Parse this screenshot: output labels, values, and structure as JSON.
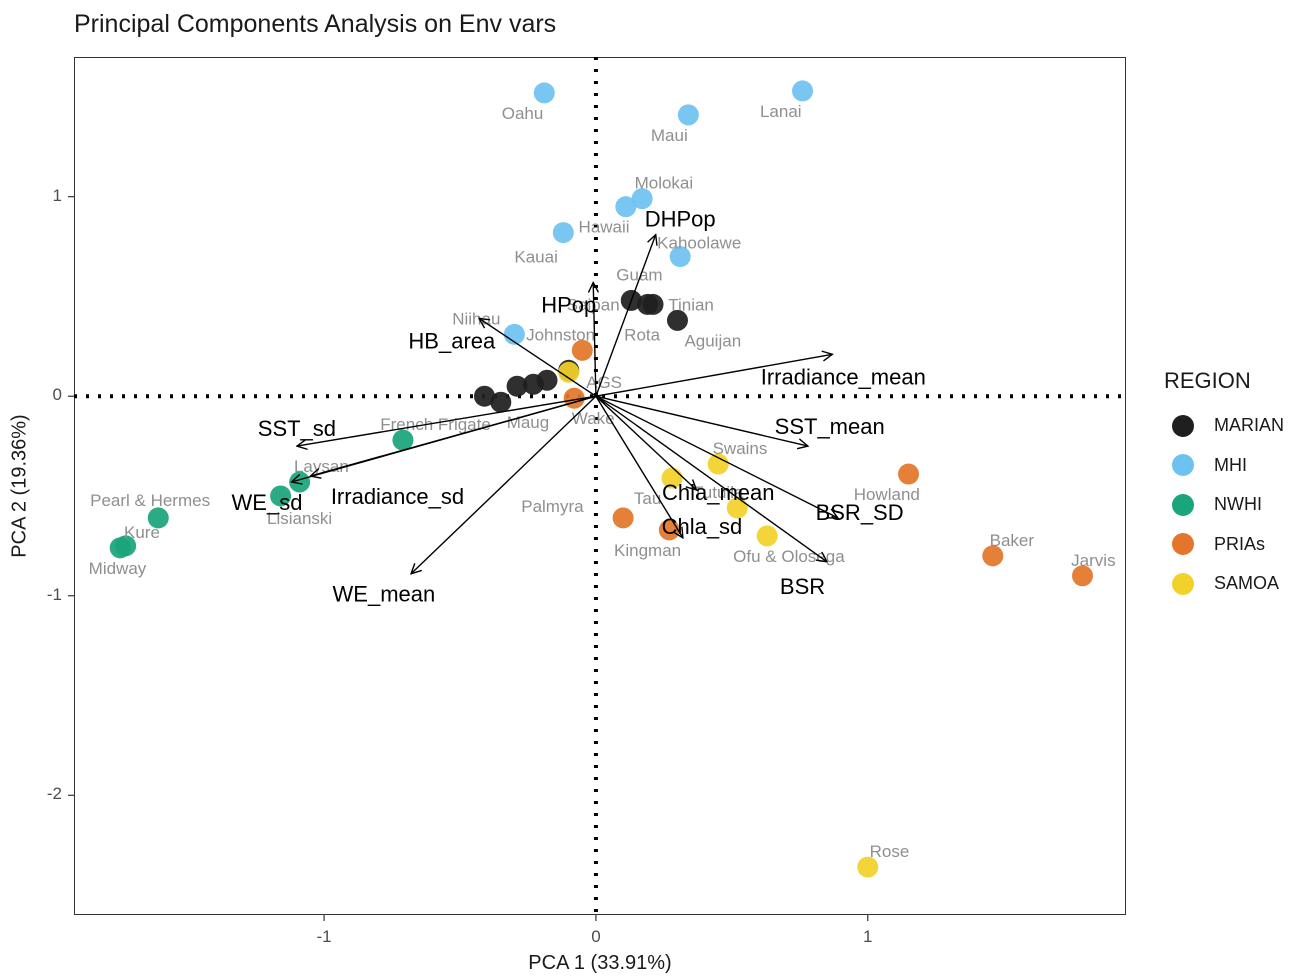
{
  "chart_data": {
    "type": "scatter",
    "title": "Principal Components Analysis on Env vars",
    "xlabel": "PCA 1 (33.91%)",
    "ylabel": "PCA 2 (19.36%)",
    "xlim": [
      -1.92,
      1.95
    ],
    "ylim": [
      -2.6,
      1.7
    ],
    "xticks": [
      -1,
      0,
      1
    ],
    "yticks": [
      -2,
      -1,
      0,
      1
    ],
    "grid": false,
    "reference_lines": {
      "x": 0,
      "y": 0,
      "style": "dotted"
    },
    "legend": {
      "title": "REGION",
      "position": "right",
      "entries": [
        {
          "name": "MARIAN",
          "color": "#1f1f1f"
        },
        {
          "name": "MHI",
          "color": "#6ec2f0"
        },
        {
          "name": "NWHI",
          "color": "#1aa57c"
        },
        {
          "name": "PRIAs",
          "color": "#e3762a"
        },
        {
          "name": "SAMOA",
          "color": "#f2d22a"
        }
      ]
    },
    "points": [
      {
        "region": "MHI",
        "x": -0.19,
        "y": 1.52
      },
      {
        "region": "MHI",
        "x": 0.34,
        "y": 1.41
      },
      {
        "region": "MHI",
        "x": 0.76,
        "y": 1.53
      },
      {
        "region": "MHI",
        "x": 0.17,
        "y": 0.99
      },
      {
        "region": "MHI",
        "x": 0.11,
        "y": 0.95
      },
      {
        "region": "MHI",
        "x": -0.12,
        "y": 0.82
      },
      {
        "region": "MHI",
        "x": 0.31,
        "y": 0.7
      },
      {
        "region": "MHI",
        "x": -0.3,
        "y": 0.31
      },
      {
        "region": "MARIAN",
        "x": 0.13,
        "y": 0.48
      },
      {
        "region": "MARIAN",
        "x": 0.19,
        "y": 0.46
      },
      {
        "region": "MARIAN",
        "x": 0.21,
        "y": 0.46
      },
      {
        "region": "MARIAN",
        "x": 0.3,
        "y": 0.38
      },
      {
        "region": "MARIAN",
        "x": -0.41,
        "y": 0.0
      },
      {
        "region": "MARIAN",
        "x": -0.35,
        "y": -0.03
      },
      {
        "region": "MARIAN",
        "x": -0.29,
        "y": 0.05
      },
      {
        "region": "MARIAN",
        "x": -0.23,
        "y": 0.06
      },
      {
        "region": "MARIAN",
        "x": -0.18,
        "y": 0.08
      },
      {
        "region": "MARIAN",
        "x": -0.1,
        "y": 0.13
      },
      {
        "region": "PRIAs",
        "x": -0.05,
        "y": 0.23
      },
      {
        "region": "PRIAs",
        "x": -0.08,
        "y": -0.01
      },
      {
        "region": "PRIAs",
        "x": 1.15,
        "y": -0.39
      },
      {
        "region": "PRIAs",
        "x": 1.46,
        "y": -0.8
      },
      {
        "region": "PRIAs",
        "x": 1.79,
        "y": -0.9
      },
      {
        "region": "PRIAs",
        "x": 0.1,
        "y": -0.61
      },
      {
        "region": "PRIAs",
        "x": 0.27,
        "y": -0.67
      },
      {
        "region": "SAMOA",
        "x": -0.1,
        "y": 0.12
      },
      {
        "region": "SAMOA",
        "x": 0.45,
        "y": -0.34
      },
      {
        "region": "SAMOA",
        "x": 0.28,
        "y": -0.41
      },
      {
        "region": "SAMOA",
        "x": 0.52,
        "y": -0.56
      },
      {
        "region": "SAMOA",
        "x": 0.63,
        "y": -0.7
      },
      {
        "region": "SAMOA",
        "x": 1.0,
        "y": -2.36
      },
      {
        "region": "NWHI",
        "x": -0.71,
        "y": -0.22
      },
      {
        "region": "NWHI",
        "x": -1.09,
        "y": -0.43
      },
      {
        "region": "NWHI",
        "x": -1.16,
        "y": -0.5
      },
      {
        "region": "NWHI",
        "x": -1.61,
        "y": -0.61
      },
      {
        "region": "NWHI",
        "x": -1.73,
        "y": -0.75
      },
      {
        "region": "NWHI",
        "x": -1.75,
        "y": -0.76
      }
    ],
    "site_labels": [
      {
        "text": "Oahu",
        "x": -0.27,
        "y": 1.42
      },
      {
        "text": "Maui",
        "x": 0.27,
        "y": 1.31
      },
      {
        "text": "Lanai",
        "x": 0.68,
        "y": 1.43
      },
      {
        "text": "Molokai",
        "x": 0.25,
        "y": 1.07
      },
      {
        "text": "Hawaii",
        "x": 0.03,
        "y": 0.85
      },
      {
        "text": "Kahoolawe",
        "x": 0.38,
        "y": 0.77
      },
      {
        "text": "Kauai",
        "x": -0.22,
        "y": 0.7
      },
      {
        "text": "Guam",
        "x": 0.16,
        "y": 0.61
      },
      {
        "text": "Saipan",
        "x": -0.01,
        "y": 0.46
      },
      {
        "text": "Tinian",
        "x": 0.35,
        "y": 0.46
      },
      {
        "text": "Niihau",
        "x": -0.44,
        "y": 0.39
      },
      {
        "text": "Johnston",
        "x": -0.13,
        "y": 0.31
      },
      {
        "text": "Rota",
        "x": 0.17,
        "y": 0.31
      },
      {
        "text": "Aguijan",
        "x": 0.43,
        "y": 0.28
      },
      {
        "text": "AGS",
        "x": 0.03,
        "y": 0.07
      },
      {
        "text": "French Frigate",
        "x": -0.59,
        "y": -0.14
      },
      {
        "text": "Maug",
        "x": -0.25,
        "y": -0.13
      },
      {
        "text": "Wake",
        "x": -0.01,
        "y": -0.11
      },
      {
        "text": "Swains",
        "x": 0.53,
        "y": -0.26
      },
      {
        "text": "Laysan",
        "x": -1.01,
        "y": -0.35
      },
      {
        "text": "Howland",
        "x": 1.07,
        "y": -0.49
      },
      {
        "text": "Pearl & Hermes",
        "x": -1.64,
        "y": -0.52
      },
      {
        "text": "Tau",
        "x": 0.19,
        "y": -0.51
      },
      {
        "text": "Tutuila",
        "x": 0.45,
        "y": -0.48
      },
      {
        "text": "Palmyra",
        "x": -0.16,
        "y": -0.55
      },
      {
        "text": "Lisianski",
        "x": -1.09,
        "y": -0.61
      },
      {
        "text": "Kure",
        "x": -1.67,
        "y": -0.68
      },
      {
        "text": "Baker",
        "x": 1.53,
        "y": -0.72
      },
      {
        "text": "Jarvis",
        "x": 1.83,
        "y": -0.82
      },
      {
        "text": "Kingman",
        "x": 0.19,
        "y": -0.77
      },
      {
        "text": "Ofu & Olosega",
        "x": 0.71,
        "y": -0.8
      },
      {
        "text": "Midway",
        "x": -1.76,
        "y": -0.86
      },
      {
        "text": "Rose",
        "x": 1.08,
        "y": -2.28
      }
    ],
    "loadings": [
      {
        "name": "DHPop",
        "x": 0.22,
        "y": 0.81,
        "label_x": 0.31,
        "label_y": 0.89
      },
      {
        "name": "HPop",
        "x": -0.01,
        "y": 0.57,
        "label_x": -0.1,
        "label_y": 0.46
      },
      {
        "name": "HB_area",
        "x": -0.43,
        "y": 0.39,
        "label_x": -0.53,
        "label_y": 0.28
      },
      {
        "name": "Irradiance_mean",
        "x": 0.87,
        "y": 0.21,
        "label_x": 0.91,
        "label_y": 0.1
      },
      {
        "name": "SST_sd",
        "x": -1.1,
        "y": -0.25,
        "label_x": -1.1,
        "label_y": -0.16
      },
      {
        "name": "SST_mean",
        "x": 0.78,
        "y": -0.25,
        "label_x": 0.86,
        "label_y": -0.15
      },
      {
        "name": "Irradiance_sd",
        "x": -1.05,
        "y": -0.4,
        "label_x": -0.73,
        "label_y": -0.5
      },
      {
        "name": "WE_sd",
        "x": -1.12,
        "y": -0.43,
        "label_x": -1.21,
        "label_y": -0.53
      },
      {
        "name": "Chla_mean",
        "x": 0.37,
        "y": -0.47,
        "label_x": 0.45,
        "label_y": -0.48
      },
      {
        "name": "BSR_SD",
        "x": 0.89,
        "y": -0.61,
        "label_x": 0.97,
        "label_y": -0.58
      },
      {
        "name": "Chla_sd",
        "x": 0.32,
        "y": -0.71,
        "label_x": 0.39,
        "label_y": -0.65
      },
      {
        "name": "BSR",
        "x": 0.85,
        "y": -0.83,
        "label_x": 0.76,
        "label_y": -0.95
      },
      {
        "name": "WE_mean",
        "x": -0.68,
        "y": -0.89,
        "label_x": -0.78,
        "label_y": -0.99
      }
    ]
  }
}
